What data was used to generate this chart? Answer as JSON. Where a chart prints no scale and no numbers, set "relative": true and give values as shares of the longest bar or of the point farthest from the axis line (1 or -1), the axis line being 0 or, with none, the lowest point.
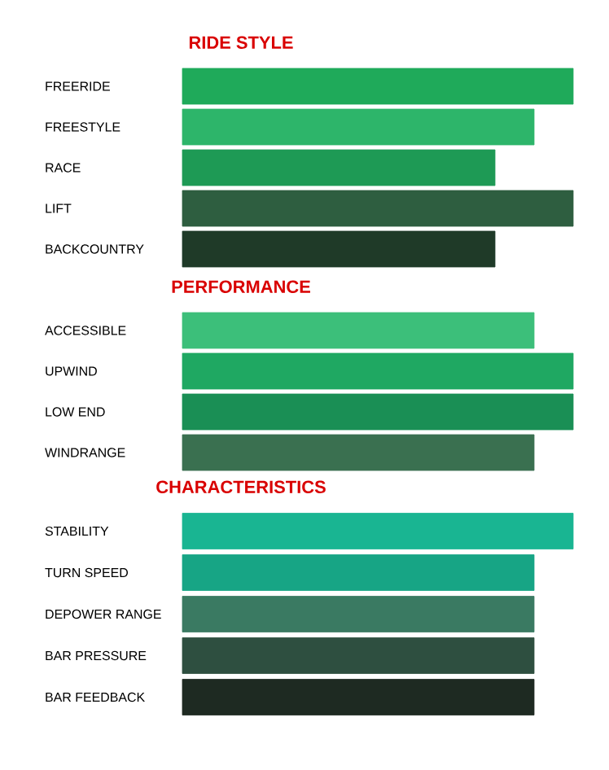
{
  "chart_data": [
    {
      "type": "bar",
      "orientation": "horizontal",
      "relative": true,
      "title": "RIDE STYLE",
      "categories": [
        "FREERIDE",
        "FREESTYLE",
        "RACE",
        "LIFT",
        "BACKCOUNTRY"
      ],
      "values": [
        1,
        0.9,
        0.8,
        1,
        0.8
      ],
      "colors": [
        "#1faa5a",
        "#2db56a",
        "#1e9a55",
        "#2e5e40",
        "#1f3a28"
      ]
    },
    {
      "type": "bar",
      "orientation": "horizontal",
      "relative": true,
      "title": "PERFORMANCE",
      "categories": [
        "ACCESSIBLE",
        "UPWIND",
        "LOW END",
        "WINDRANGE"
      ],
      "values": [
        0.9,
        1,
        1,
        0.9
      ],
      "colors": [
        "#3cbf7a",
        "#1fa862",
        "#1a8f55",
        "#3a7050"
      ]
    },
    {
      "type": "bar",
      "orientation": "horizontal",
      "relative": true,
      "title": "CHARACTERISTICS",
      "categories": [
        "STABILITY",
        "TURN SPEED",
        "DEPOWER RANGE",
        "BAR PRESSURE",
        "BAR FEEDBACK"
      ],
      "values": [
        1,
        0.9,
        0.9,
        0.9,
        0.9
      ],
      "colors": [
        "#19b592",
        "#17a585",
        "#3a7a62",
        "#2e4f40",
        "#1e2a22"
      ]
    }
  ]
}
